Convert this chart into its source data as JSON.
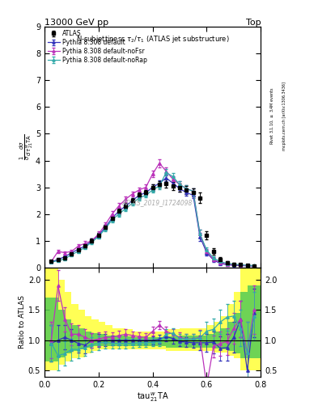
{
  "title_top": "13000 GeV pp",
  "title_top_right": "Top",
  "plot_title": "N-subjettiness $\\tau_2/\\tau_1$ (ATLAS jet substructure)",
  "watermark": "ATLAS_2019_I1724098",
  "ylabel_main": "$\\frac{1}{\\sigma}\\frac{d\\sigma}{d\\,\\tau_{21}^{w}\\mathrm{TA}}$",
  "ylabel_ratio": "Ratio to ATLAS",
  "xlabel": "$\\mathrm{tau}_{21}^{w}\\mathrm{TA}$",
  "right_label_top": "Rivet 3.1.10, $\\geq$ 3.4M events",
  "right_label_bot": "mcplots.cern.ch [arXiv:1306.3436]",
  "ylim_main": [
    0,
    9
  ],
  "ylim_ratio": [
    0.4,
    2.2
  ],
  "yticks_main": [
    0,
    1,
    2,
    3,
    4,
    5,
    6,
    7,
    8,
    9
  ],
  "yticks_ratio": [
    0.5,
    1.0,
    1.5,
    2.0
  ],
  "xlim": [
    0.0,
    0.8
  ],
  "xticks": [
    0.0,
    0.2,
    0.4,
    0.6,
    0.8
  ],
  "atlas_x": [
    0.025,
    0.05,
    0.075,
    0.1,
    0.125,
    0.15,
    0.175,
    0.2,
    0.225,
    0.25,
    0.275,
    0.3,
    0.325,
    0.35,
    0.375,
    0.4,
    0.425,
    0.45,
    0.475,
    0.5,
    0.525,
    0.55,
    0.575,
    0.6,
    0.625,
    0.65,
    0.675,
    0.7,
    0.725,
    0.75,
    0.775
  ],
  "atlas_y": [
    0.22,
    0.28,
    0.35,
    0.5,
    0.65,
    0.8,
    1.0,
    1.2,
    1.5,
    1.85,
    2.1,
    2.3,
    2.5,
    2.7,
    2.8,
    3.0,
    3.1,
    3.15,
    3.05,
    3.0,
    2.9,
    2.8,
    2.6,
    1.2,
    0.6,
    0.3,
    0.18,
    0.12,
    0.1,
    0.08,
    0.05
  ],
  "atlas_yerr": [
    0.05,
    0.05,
    0.05,
    0.06,
    0.07,
    0.08,
    0.08,
    0.09,
    0.1,
    0.1,
    0.1,
    0.1,
    0.1,
    0.1,
    0.1,
    0.12,
    0.12,
    0.15,
    0.15,
    0.15,
    0.15,
    0.15,
    0.2,
    0.15,
    0.12,
    0.08,
    0.05,
    0.04,
    0.03,
    0.03,
    0.02
  ],
  "py_default_x": [
    0.025,
    0.05,
    0.075,
    0.1,
    0.125,
    0.15,
    0.175,
    0.2,
    0.225,
    0.25,
    0.275,
    0.3,
    0.325,
    0.35,
    0.375,
    0.4,
    0.425,
    0.45,
    0.475,
    0.5,
    0.525,
    0.55,
    0.575,
    0.6,
    0.625,
    0.65,
    0.675,
    0.7,
    0.725,
    0.75,
    0.775
  ],
  "py_default_y": [
    0.2,
    0.3,
    0.4,
    0.55,
    0.68,
    0.8,
    1.0,
    1.2,
    1.5,
    1.85,
    2.1,
    2.3,
    2.5,
    2.7,
    2.8,
    3.0,
    3.15,
    3.35,
    3.15,
    2.95,
    2.8,
    2.7,
    1.15,
    0.55,
    0.28,
    0.15,
    0.1,
    0.08,
    0.07,
    0.06,
    0.05
  ],
  "py_default_yerr": [
    0.04,
    0.04,
    0.05,
    0.05,
    0.06,
    0.07,
    0.07,
    0.08,
    0.09,
    0.09,
    0.09,
    0.09,
    0.09,
    0.09,
    0.09,
    0.1,
    0.1,
    0.12,
    0.12,
    0.12,
    0.12,
    0.12,
    0.15,
    0.1,
    0.08,
    0.06,
    0.04,
    0.03,
    0.03,
    0.02,
    0.02
  ],
  "py_default_color": "#3333bb",
  "py_noFSR_x": [
    0.025,
    0.05,
    0.075,
    0.1,
    0.125,
    0.15,
    0.175,
    0.2,
    0.225,
    0.25,
    0.275,
    0.3,
    0.325,
    0.35,
    0.375,
    0.4,
    0.425,
    0.45,
    0.475,
    0.5,
    0.525,
    0.55,
    0.575,
    0.6,
    0.625,
    0.65,
    0.675,
    0.7,
    0.725,
    0.75,
    0.775
  ],
  "py_noFSR_y": [
    0.22,
    0.6,
    0.55,
    0.6,
    0.8,
    0.9,
    1.0,
    1.25,
    1.6,
    2.0,
    2.3,
    2.55,
    2.75,
    2.9,
    3.0,
    3.5,
    3.9,
    3.6,
    3.3,
    3.1,
    2.95,
    2.85,
    1.25,
    0.6,
    0.3,
    0.18,
    0.12,
    0.1,
    0.08,
    0.07,
    0.06
  ],
  "py_noFSR_yerr": [
    0.04,
    0.06,
    0.06,
    0.06,
    0.07,
    0.08,
    0.08,
    0.09,
    0.1,
    0.1,
    0.1,
    0.1,
    0.1,
    0.1,
    0.1,
    0.12,
    0.15,
    0.15,
    0.12,
    0.12,
    0.12,
    0.12,
    0.15,
    0.1,
    0.08,
    0.06,
    0.04,
    0.03,
    0.03,
    0.02,
    0.02
  ],
  "py_noFSR_color": "#bb33bb",
  "py_noRap_x": [
    0.025,
    0.05,
    0.075,
    0.1,
    0.125,
    0.15,
    0.175,
    0.2,
    0.225,
    0.25,
    0.275,
    0.3,
    0.325,
    0.35,
    0.375,
    0.4,
    0.425,
    0.45,
    0.475,
    0.5,
    0.525,
    0.55,
    0.575,
    0.6,
    0.625,
    0.65,
    0.675,
    0.7,
    0.725,
    0.75,
    0.775
  ],
  "py_noRap_y": [
    0.2,
    0.25,
    0.32,
    0.48,
    0.6,
    0.75,
    0.95,
    1.15,
    1.45,
    1.78,
    2.0,
    2.2,
    2.4,
    2.6,
    2.7,
    2.9,
    3.05,
    3.55,
    3.4,
    3.1,
    2.95,
    2.85,
    1.25,
    0.65,
    0.35,
    0.22,
    0.15,
    0.12,
    0.1,
    0.08,
    0.07
  ],
  "py_noRap_yerr": [
    0.04,
    0.04,
    0.05,
    0.05,
    0.06,
    0.07,
    0.07,
    0.08,
    0.09,
    0.09,
    0.09,
    0.09,
    0.09,
    0.09,
    0.09,
    0.1,
    0.12,
    0.12,
    0.12,
    0.12,
    0.12,
    0.12,
    0.15,
    0.1,
    0.08,
    0.06,
    0.04,
    0.03,
    0.03,
    0.02,
    0.02
  ],
  "py_noRap_color": "#33aaaa",
  "ratio_default_y": [
    0.95,
    1.0,
    1.05,
    1.0,
    0.95,
    0.92,
    1.0,
    1.0,
    1.0,
    1.0,
    1.0,
    1.0,
    1.0,
    1.0,
    1.0,
    1.0,
    1.02,
    1.06,
    1.03,
    0.98,
    0.97,
    0.96,
    0.96,
    0.96,
    0.97,
    0.87,
    0.88,
    1.05,
    1.35,
    0.5,
    1.45
  ],
  "ratio_noFSR_y": [
    1.0,
    1.9,
    1.35,
    1.1,
    1.1,
    1.05,
    1.0,
    1.02,
    1.05,
    1.05,
    1.08,
    1.1,
    1.08,
    1.06,
    1.05,
    1.15,
    1.25,
    1.15,
    1.1,
    1.05,
    1.02,
    1.02,
    1.05,
    0.25,
    0.9,
    0.95,
    0.98,
    1.2,
    1.35,
    0.8,
    1.5
  ],
  "ratio_noRap_y": [
    0.95,
    0.75,
    0.78,
    0.85,
    0.85,
    0.88,
    0.93,
    0.95,
    0.97,
    0.95,
    0.95,
    0.95,
    0.95,
    0.96,
    0.96,
    0.97,
    0.98,
    1.1,
    1.12,
    1.03,
    1.02,
    1.02,
    1.04,
    1.15,
    1.18,
    1.3,
    1.38,
    1.4,
    1.2,
    0.8,
    1.4
  ],
  "ratio_default_yerr": [
    0.3,
    0.25,
    0.2,
    0.18,
    0.15,
    0.13,
    0.12,
    0.11,
    0.1,
    0.08,
    0.08,
    0.08,
    0.07,
    0.07,
    0.07,
    0.07,
    0.07,
    0.08,
    0.08,
    0.08,
    0.08,
    0.08,
    0.12,
    0.15,
    0.18,
    0.2,
    0.22,
    0.25,
    0.3,
    0.5,
    0.4
  ],
  "ratio_noFSR_yerr": [
    0.3,
    0.25,
    0.2,
    0.18,
    0.15,
    0.13,
    0.12,
    0.11,
    0.1,
    0.08,
    0.08,
    0.08,
    0.07,
    0.07,
    0.07,
    0.07,
    0.07,
    0.08,
    0.08,
    0.08,
    0.08,
    0.08,
    0.12,
    0.15,
    0.18,
    0.2,
    0.22,
    0.25,
    0.3,
    0.5,
    0.4
  ],
  "ratio_noRap_yerr": [
    0.3,
    0.25,
    0.2,
    0.18,
    0.15,
    0.13,
    0.12,
    0.11,
    0.1,
    0.08,
    0.08,
    0.08,
    0.07,
    0.07,
    0.07,
    0.07,
    0.07,
    0.08,
    0.08,
    0.08,
    0.08,
    0.08,
    0.12,
    0.15,
    0.18,
    0.2,
    0.22,
    0.25,
    0.3,
    0.5,
    0.4
  ],
  "band_yellow_lo": [
    0.5,
    0.5,
    0.6,
    0.65,
    0.7,
    0.72,
    0.78,
    0.82,
    0.85,
    0.85,
    0.85,
    0.85,
    0.85,
    0.85,
    0.85,
    0.85,
    0.85,
    0.85,
    0.82,
    0.82,
    0.82,
    0.82,
    0.82,
    0.82,
    0.82,
    0.8,
    0.8,
    0.75,
    0.7,
    0.5,
    0.5
  ],
  "band_yellow_hi": [
    2.2,
    2.2,
    2.0,
    1.8,
    1.6,
    1.5,
    1.4,
    1.35,
    1.3,
    1.25,
    1.2,
    1.2,
    1.18,
    1.15,
    1.15,
    1.15,
    1.15,
    1.15,
    1.18,
    1.18,
    1.2,
    1.2,
    1.2,
    1.2,
    1.25,
    1.3,
    1.4,
    1.6,
    1.8,
    2.2,
    2.2
  ],
  "band_green_lo": [
    0.7,
    0.65,
    0.72,
    0.78,
    0.82,
    0.85,
    0.88,
    0.9,
    0.9,
    0.9,
    0.9,
    0.9,
    0.9,
    0.9,
    0.9,
    0.9,
    0.9,
    0.9,
    0.88,
    0.88,
    0.88,
    0.88,
    0.88,
    0.88,
    0.88,
    0.86,
    0.85,
    0.82,
    0.78,
    0.7,
    0.7
  ],
  "band_green_hi": [
    1.8,
    1.7,
    1.5,
    1.35,
    1.25,
    1.2,
    1.15,
    1.12,
    1.1,
    1.08,
    1.08,
    1.08,
    1.06,
    1.05,
    1.05,
    1.05,
    1.05,
    1.05,
    1.06,
    1.06,
    1.08,
    1.08,
    1.08,
    1.08,
    1.1,
    1.15,
    1.2,
    1.3,
    1.45,
    1.8,
    1.9
  ],
  "legend_entries": [
    "ATLAS",
    "Pythia 8.308 default",
    "Pythia 8.308 default-noFsr",
    "Pythia 8.308 default-noRap"
  ],
  "atlas_color": "black",
  "fig_bg_color": "#ffffff"
}
